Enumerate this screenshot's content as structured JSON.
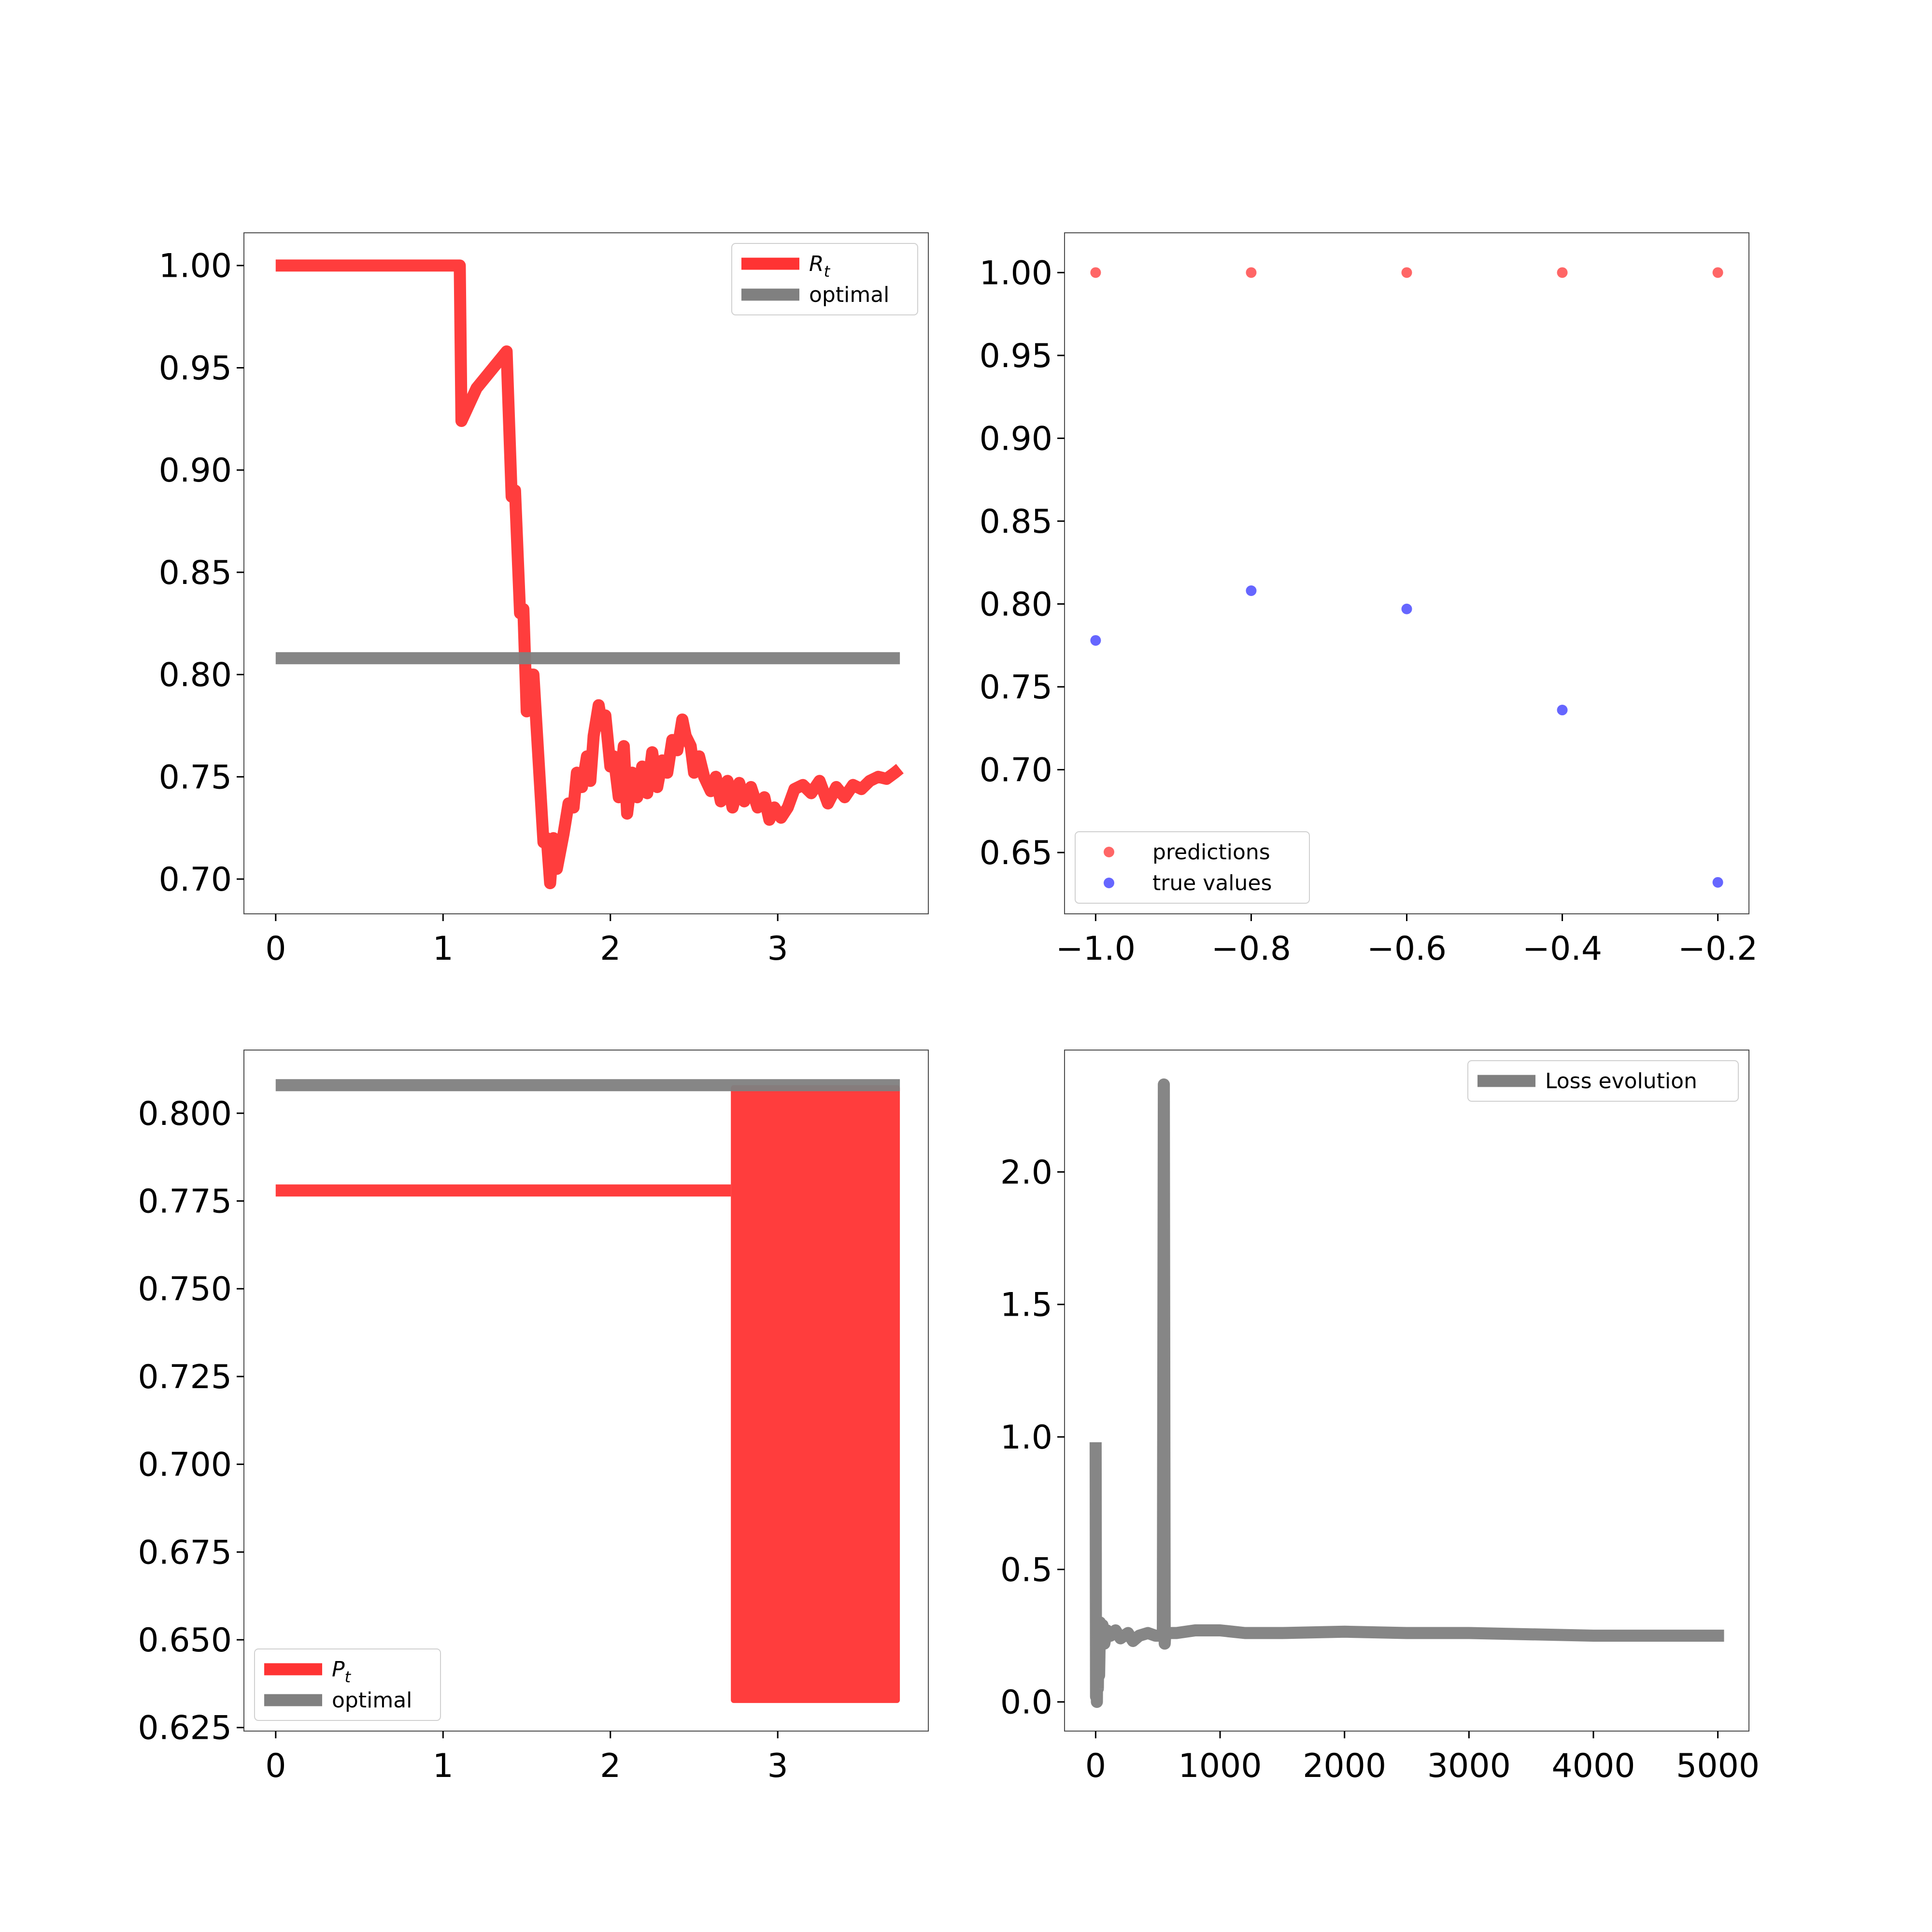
{
  "figure": {
    "background": "#ffffff"
  },
  "chart_data": [
    {
      "id": "tl",
      "type": "line",
      "title": "",
      "xlabel": "",
      "ylabel": "",
      "xlim": [
        -0.19,
        3.9
      ],
      "ylim": [
        0.683,
        1.016
      ],
      "xticks": [
        0,
        1,
        2,
        3
      ],
      "xtick_labels": [
        "0",
        "1",
        "2",
        "3"
      ],
      "yticks": [
        0.7,
        0.75,
        0.8,
        0.85,
        0.9,
        0.95,
        1.0
      ],
      "ytick_labels": [
        "0.70",
        "0.75",
        "0.80",
        "0.85",
        "0.90",
        "0.95",
        "1.00"
      ],
      "grid": false,
      "legend_position": "top-right",
      "series": [
        {
          "name": "R",
          "name_sub": "t",
          "color": "#ff3333",
          "values": [
            [
              0,
              1.0
            ],
            [
              1.1,
              1.0
            ],
            [
              1.11,
              0.924
            ],
            [
              1.2,
              0.94
            ],
            [
              1.38,
              0.958
            ],
            [
              1.41,
              0.887
            ],
            [
              1.43,
              0.89
            ],
            [
              1.46,
              0.83
            ],
            [
              1.48,
              0.832
            ],
            [
              1.5,
              0.782
            ],
            [
              1.52,
              0.8
            ],
            [
              1.54,
              0.8
            ],
            [
              1.6,
              0.718
            ],
            [
              1.62,
              0.72
            ],
            [
              1.64,
              0.698
            ],
            [
              1.66,
              0.72
            ],
            [
              1.68,
              0.705
            ],
            [
              1.72,
              0.722
            ],
            [
              1.75,
              0.737
            ],
            [
              1.78,
              0.735
            ],
            [
              1.8,
              0.752
            ],
            [
              1.83,
              0.745
            ],
            [
              1.86,
              0.76
            ],
            [
              1.88,
              0.748
            ],
            [
              1.9,
              0.77
            ],
            [
              1.93,
              0.785
            ],
            [
              1.95,
              0.775
            ],
            [
              1.97,
              0.78
            ],
            [
              2.0,
              0.755
            ],
            [
              2.02,
              0.76
            ],
            [
              2.05,
              0.74
            ],
            [
              2.08,
              0.765
            ],
            [
              2.1,
              0.732
            ],
            [
              2.13,
              0.752
            ],
            [
              2.16,
              0.74
            ],
            [
              2.19,
              0.755
            ],
            [
              2.22,
              0.742
            ],
            [
              2.25,
              0.762
            ],
            [
              2.28,
              0.745
            ],
            [
              2.31,
              0.758
            ],
            [
              2.34,
              0.752
            ],
            [
              2.37,
              0.768
            ],
            [
              2.4,
              0.763
            ],
            [
              2.43,
              0.778
            ],
            [
              2.45,
              0.77
            ],
            [
              2.48,
              0.765
            ],
            [
              2.5,
              0.752
            ],
            [
              2.53,
              0.76
            ],
            [
              2.56,
              0.75
            ],
            [
              2.6,
              0.743
            ],
            [
              2.63,
              0.75
            ],
            [
              2.66,
              0.738
            ],
            [
              2.7,
              0.748
            ],
            [
              2.73,
              0.735
            ],
            [
              2.77,
              0.747
            ],
            [
              2.8,
              0.738
            ],
            [
              2.84,
              0.745
            ],
            [
              2.88,
              0.735
            ],
            [
              2.92,
              0.74
            ],
            [
              2.95,
              0.729
            ],
            [
              2.98,
              0.735
            ],
            [
              3.02,
              0.73
            ],
            [
              3.06,
              0.735
            ],
            [
              3.1,
              0.744
            ],
            [
              3.15,
              0.746
            ],
            [
              3.2,
              0.742
            ],
            [
              3.25,
              0.748
            ],
            [
              3.3,
              0.737
            ],
            [
              3.35,
              0.745
            ],
            [
              3.4,
              0.74
            ],
            [
              3.45,
              0.746
            ],
            [
              3.5,
              0.744
            ],
            [
              3.55,
              0.748
            ],
            [
              3.6,
              0.75
            ],
            [
              3.65,
              0.749
            ],
            [
              3.7,
              0.752
            ],
            [
              3.73,
              0.754
            ]
          ]
        },
        {
          "name": "optimal",
          "color": "#808080",
          "values": [
            [
              0,
              0.808
            ],
            [
              3.73,
              0.808
            ]
          ]
        }
      ]
    },
    {
      "id": "tr",
      "type": "scatter",
      "title": "",
      "xlabel": "",
      "ylabel": "",
      "xlim": [
        -1.04,
        -0.16
      ],
      "ylim": [
        0.613,
        1.024
      ],
      "xticks": [
        -1.0,
        -0.8,
        -0.6,
        -0.4,
        -0.2
      ],
      "xtick_labels": [
        "−1.0",
        "−0.8",
        "−0.6",
        "−0.4",
        "−0.2"
      ],
      "yticks": [
        0.65,
        0.7,
        0.75,
        0.8,
        0.85,
        0.9,
        0.95,
        1.0
      ],
      "ytick_labels": [
        "0.65",
        "0.70",
        "0.75",
        "0.80",
        "0.85",
        "0.90",
        "0.95",
        "1.00"
      ],
      "grid": false,
      "legend_position": "bottom-left",
      "series": [
        {
          "name": "predictions",
          "color": "#ff3333",
          "values": [
            [
              -1.0,
              1.0
            ],
            [
              -0.8,
              1.0
            ],
            [
              -0.6,
              1.0
            ],
            [
              -0.4,
              1.0
            ],
            [
              -0.2,
              1.0
            ]
          ]
        },
        {
          "name": "true values",
          "color": "#3333ff",
          "values": [
            [
              -1.0,
              0.778
            ],
            [
              -0.8,
              0.808
            ],
            [
              -0.6,
              0.797
            ],
            [
              -0.4,
              0.736
            ],
            [
              -0.2,
              0.632
            ]
          ]
        }
      ]
    },
    {
      "id": "bl",
      "type": "line",
      "title": "",
      "xlabel": "",
      "ylabel": "",
      "xlim": [
        -0.19,
        3.9
      ],
      "ylim": [
        0.624,
        0.818
      ],
      "xticks": [
        0,
        1,
        2,
        3
      ],
      "xtick_labels": [
        "0",
        "1",
        "2",
        "3"
      ],
      "yticks": [
        0.625,
        0.65,
        0.675,
        0.7,
        0.725,
        0.75,
        0.775,
        0.8
      ],
      "ytick_labels": [
        "0.625",
        "0.650",
        "0.675",
        "0.700",
        "0.725",
        "0.750",
        "0.775",
        "0.800"
      ],
      "grid": false,
      "legend_position": "bottom-left",
      "series": [
        {
          "name": "P",
          "name_sub": "t",
          "color": "#ff3333",
          "values": [
            [
              0,
              0.778
            ],
            [
              2.72,
              0.778
            ]
          ],
          "oscillation": {
            "x_range": [
              2.72,
              3.73
            ],
            "low": 0.632,
            "high": 0.808
          }
        },
        {
          "name": "optimal",
          "color": "#808080",
          "values": [
            [
              0,
              0.808
            ],
            [
              3.73,
              0.808
            ]
          ]
        }
      ]
    },
    {
      "id": "br",
      "type": "line",
      "title": "",
      "xlabel": "",
      "ylabel": "",
      "xlim": [
        -250,
        5250
      ],
      "ylim": [
        -0.11,
        2.46
      ],
      "xticks": [
        0,
        1000,
        2000,
        3000,
        4000,
        5000
      ],
      "xtick_labels": [
        "0",
        "1000",
        "2000",
        "3000",
        "4000",
        "5000"
      ],
      "yticks": [
        0.0,
        0.5,
        1.0,
        1.5,
        2.0
      ],
      "ytick_labels": [
        "0.0",
        "0.5",
        "1.0",
        "1.5",
        "2.0"
      ],
      "grid": false,
      "legend_position": "top-right",
      "series": [
        {
          "name": "Loss evolution",
          "color": "#808080",
          "values": [
            [
              0,
              0.98
            ],
            [
              3,
              0.02
            ],
            [
              6,
              0.3
            ],
            [
              10,
              0.0
            ],
            [
              14,
              0.28
            ],
            [
              18,
              0.05
            ],
            [
              22,
              0.25
            ],
            [
              28,
              0.1
            ],
            [
              35,
              0.3
            ],
            [
              45,
              0.24
            ],
            [
              55,
              0.29
            ],
            [
              70,
              0.22
            ],
            [
              90,
              0.27
            ],
            [
              120,
              0.25
            ],
            [
              160,
              0.27
            ],
            [
              200,
              0.24
            ],
            [
              260,
              0.26
            ],
            [
              300,
              0.23
            ],
            [
              350,
              0.25
            ],
            [
              420,
              0.26
            ],
            [
              480,
              0.25
            ],
            [
              540,
              0.25
            ],
            [
              548,
              2.33
            ],
            [
              555,
              0.22
            ],
            [
              560,
              0.26
            ],
            [
              650,
              0.26
            ],
            [
              800,
              0.27
            ],
            [
              1000,
              0.27
            ],
            [
              1200,
              0.26
            ],
            [
              1500,
              0.26
            ],
            [
              2000,
              0.265
            ],
            [
              2500,
              0.26
            ],
            [
              3000,
              0.26
            ],
            [
              3500,
              0.255
            ],
            [
              4000,
              0.25
            ],
            [
              4500,
              0.25
            ],
            [
              5000,
              0.25
            ],
            [
              5050,
              0.25
            ]
          ]
        }
      ]
    }
  ]
}
